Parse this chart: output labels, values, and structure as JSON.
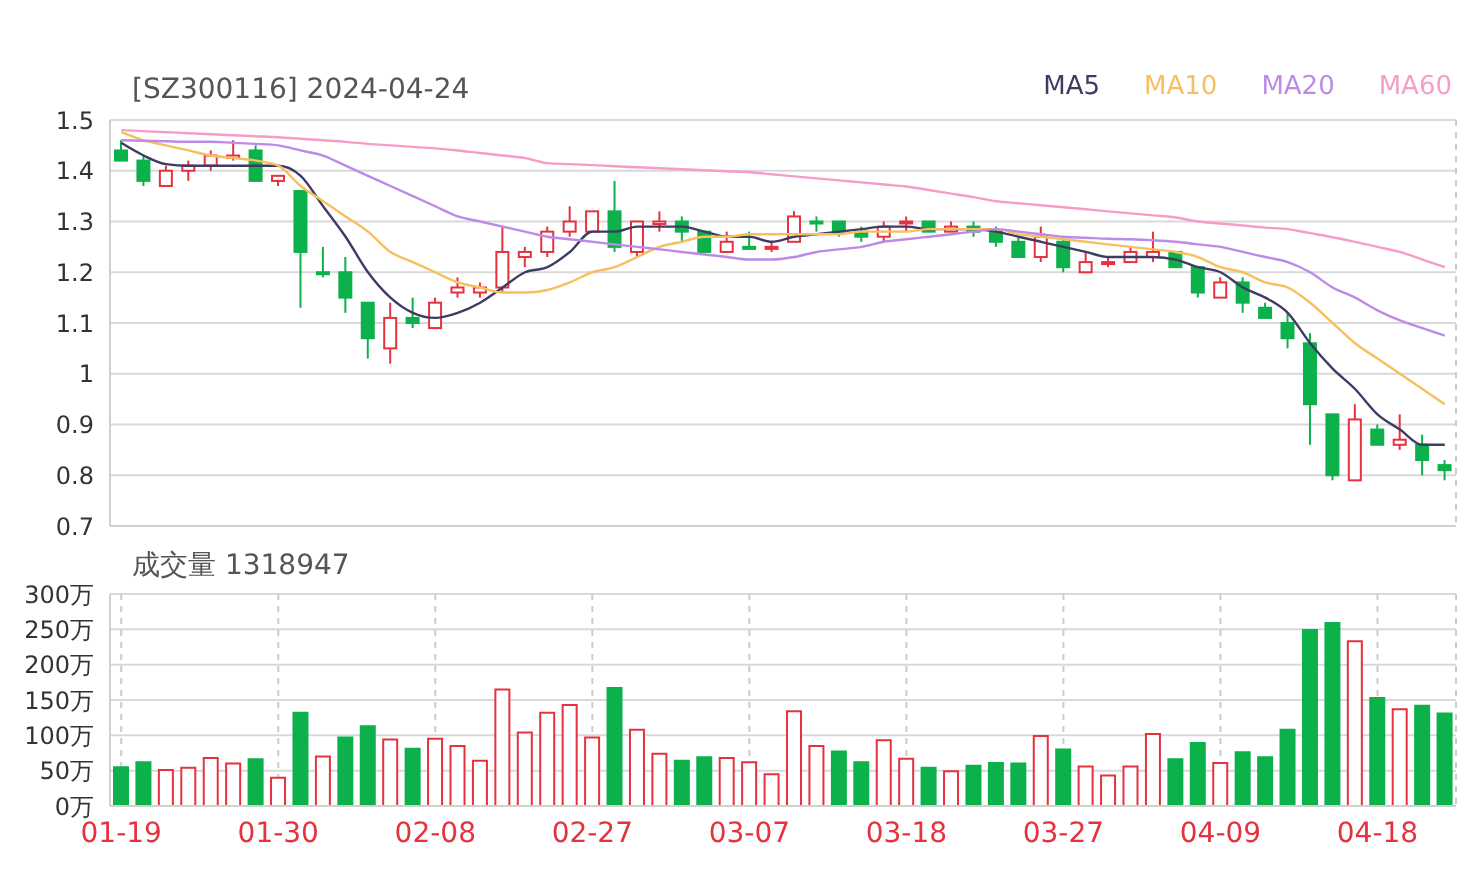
{
  "chart_data": [
    {
      "type": "candlestick",
      "title": "[SZ300116] 2024-04-24",
      "categories": [
        null,
        null,
        null,
        null,
        null,
        null,
        null,
        null,
        null,
        null,
        null,
        null,
        null,
        null,
        null,
        null,
        null,
        null,
        null,
        null,
        null,
        null,
        null,
        null,
        null,
        null,
        null,
        null,
        null,
        null,
        null,
        null,
        null,
        null,
        null,
        null,
        null,
        null,
        null,
        null,
        null,
        null,
        null,
        null,
        null,
        null,
        null,
        null,
        null,
        null,
        null,
        null,
        null,
        null,
        null,
        null,
        null,
        null,
        null,
        null
      ],
      "ohlc": [
        [
          1.44,
          1.46,
          1.42,
          1.42
        ],
        [
          1.42,
          1.43,
          1.37,
          1.38
        ],
        [
          1.37,
          1.41,
          1.37,
          1.4
        ],
        [
          1.4,
          1.42,
          1.38,
          1.41
        ],
        [
          1.41,
          1.44,
          1.4,
          1.43
        ],
        [
          1.425,
          1.46,
          1.42,
          1.43
        ],
        [
          1.44,
          1.45,
          1.38,
          1.38
        ],
        [
          1.38,
          1.39,
          1.37,
          1.39
        ],
        [
          1.36,
          1.36,
          1.13,
          1.24
        ],
        [
          1.2,
          1.25,
          1.19,
          1.2
        ],
        [
          1.2,
          1.23,
          1.12,
          1.15
        ],
        [
          1.14,
          1.14,
          1.03,
          1.07
        ],
        [
          1.05,
          1.14,
          1.02,
          1.11
        ],
        [
          1.11,
          1.15,
          1.09,
          1.1
        ],
        [
          1.09,
          1.15,
          1.09,
          1.14
        ],
        [
          1.16,
          1.19,
          1.15,
          1.17
        ],
        [
          1.16,
          1.18,
          1.15,
          1.17
        ],
        [
          1.17,
          1.29,
          1.16,
          1.24
        ],
        [
          1.23,
          1.25,
          1.21,
          1.24
        ],
        [
          1.24,
          1.29,
          1.23,
          1.28
        ],
        [
          1.28,
          1.33,
          1.27,
          1.3
        ],
        [
          1.28,
          1.32,
          1.28,
          1.32
        ],
        [
          1.32,
          1.38,
          1.24,
          1.25
        ],
        [
          1.24,
          1.3,
          1.23,
          1.3
        ],
        [
          1.295,
          1.32,
          1.28,
          1.3
        ],
        [
          1.3,
          1.31,
          1.26,
          1.28
        ],
        [
          1.28,
          1.28,
          1.24,
          1.24
        ],
        [
          1.24,
          1.28,
          1.24,
          1.26
        ],
        [
          1.25,
          1.28,
          1.25,
          1.25
        ],
        [
          1.25,
          1.26,
          1.24,
          1.25
        ],
        [
          1.26,
          1.32,
          1.26,
          1.31
        ],
        [
          1.3,
          1.31,
          1.28,
          1.3
        ],
        [
          1.3,
          1.3,
          1.27,
          1.28
        ],
        [
          1.28,
          1.29,
          1.26,
          1.27
        ],
        [
          1.27,
          1.3,
          1.26,
          1.29
        ],
        [
          1.3,
          1.31,
          1.28,
          1.3
        ],
        [
          1.3,
          1.3,
          1.28,
          1.28
        ],
        [
          1.28,
          1.3,
          1.28,
          1.29
        ],
        [
          1.29,
          1.3,
          1.27,
          1.28
        ],
        [
          1.28,
          1.29,
          1.25,
          1.26
        ],
        [
          1.26,
          1.27,
          1.23,
          1.23
        ],
        [
          1.23,
          1.29,
          1.22,
          1.27
        ],
        [
          1.26,
          1.27,
          1.2,
          1.21
        ],
        [
          1.2,
          1.24,
          1.2,
          1.22
        ],
        [
          1.22,
          1.23,
          1.21,
          1.22
        ],
        [
          1.22,
          1.25,
          1.22,
          1.24
        ],
        [
          1.23,
          1.28,
          1.22,
          1.24
        ],
        [
          1.24,
          1.24,
          1.21,
          1.21
        ],
        [
          1.21,
          1.21,
          1.15,
          1.16
        ],
        [
          1.15,
          1.19,
          1.15,
          1.18
        ],
        [
          1.18,
          1.19,
          1.12,
          1.14
        ],
        [
          1.13,
          1.14,
          1.11,
          1.11
        ],
        [
          1.1,
          1.12,
          1.05,
          1.07
        ],
        [
          1.06,
          1.08,
          0.86,
          0.94
        ],
        [
          0.92,
          0.92,
          0.79,
          0.8
        ],
        [
          0.79,
          0.94,
          0.79,
          0.91
        ],
        [
          0.89,
          0.9,
          0.86,
          0.86
        ],
        [
          0.86,
          0.92,
          0.85,
          0.87
        ],
        [
          0.86,
          0.88,
          0.8,
          0.83
        ],
        [
          0.82,
          0.83,
          0.79,
          0.81
        ]
      ],
      "colors": [
        "#0cb14b",
        "#0cb14b",
        "#e5323e",
        "#e5323e",
        "#e5323e",
        "#e5323e",
        "#0cb14b",
        "#e5323e",
        "#0cb14b",
        "#0cb14b",
        "#0cb14b",
        "#0cb14b",
        "#e5323e",
        "#0cb14b",
        "#e5323e",
        "#e5323e",
        "#e5323e",
        "#e5323e",
        "#e5323e",
        "#e5323e",
        "#e5323e",
        "#e5323e",
        "#0cb14b",
        "#e5323e",
        "#e5323e",
        "#0cb14b",
        "#0cb14b",
        "#e5323e",
        "#0cb14b",
        "#e5323e",
        "#e5323e",
        "#0cb14b",
        "#0cb14b",
        "#0cb14b",
        "#e5323e",
        "#e5323e",
        "#0cb14b",
        "#e5323e",
        "#0cb14b",
        "#0cb14b",
        "#0cb14b",
        "#e5323e",
        "#0cb14b",
        "#e5323e",
        "#e5323e",
        "#e5323e",
        "#e5323e",
        "#0cb14b",
        "#0cb14b",
        "#e5323e",
        "#0cb14b",
        "#0cb14b",
        "#0cb14b",
        "#0cb14b",
        "#0cb14b",
        "#e5323e",
        "#0cb14b",
        "#e5323e",
        "#0cb14b",
        "#0cb14b"
      ],
      "series": [
        {
          "type": "line",
          "name": "MA5",
          "color": "#3f3b63",
          "values": [
            1.455,
            1.43,
            1.413,
            1.41,
            1.41,
            1.41,
            1.41,
            1.41,
            1.39,
            1.33,
            1.27,
            1.2,
            1.15,
            1.12,
            1.11,
            1.12,
            1.14,
            1.17,
            1.2,
            1.21,
            1.24,
            1.28,
            1.28,
            1.29,
            1.29,
            1.29,
            1.28,
            1.27,
            1.27,
            1.26,
            1.27,
            1.275,
            1.28,
            1.285,
            1.29,
            1.29,
            1.285,
            1.285,
            1.285,
            1.28,
            1.27,
            1.26,
            1.25,
            1.24,
            1.23,
            1.23,
            1.23,
            1.225,
            1.21,
            1.2,
            1.17,
            1.15,
            1.12,
            1.06,
            1.01,
            0.97,
            0.92,
            0.89,
            0.86,
            0.86
          ]
        },
        {
          "type": "line",
          "name": "MA10",
          "color": "#f7bf5e",
          "values": [
            1.476,
            1.46,
            1.45,
            1.44,
            1.43,
            1.425,
            1.42,
            1.41,
            1.37,
            1.34,
            1.31,
            1.28,
            1.24,
            1.22,
            1.2,
            1.18,
            1.17,
            1.16,
            1.16,
            1.165,
            1.18,
            1.2,
            1.21,
            1.23,
            1.25,
            1.26,
            1.27,
            1.27,
            1.275,
            1.275,
            1.275,
            1.275,
            1.275,
            1.28,
            1.28,
            1.28,
            1.285,
            1.285,
            1.285,
            1.285,
            1.275,
            1.27,
            1.265,
            1.26,
            1.255,
            1.25,
            1.245,
            1.24,
            1.23,
            1.21,
            1.2,
            1.18,
            1.17,
            1.14,
            1.1,
            1.06,
            1.03,
            1.0,
            0.97,
            0.94
          ]
        },
        {
          "type": "line",
          "name": "MA20",
          "color": "#bd8ae8",
          "values": [
            1.46,
            1.459,
            1.458,
            1.457,
            1.457,
            1.455,
            1.453,
            1.45,
            1.44,
            1.43,
            1.41,
            1.39,
            1.37,
            1.35,
            1.33,
            1.31,
            1.3,
            1.29,
            1.28,
            1.27,
            1.265,
            1.26,
            1.255,
            1.25,
            1.245,
            1.24,
            1.235,
            1.23,
            1.225,
            1.225,
            1.23,
            1.24,
            1.245,
            1.25,
            1.26,
            1.265,
            1.27,
            1.275,
            1.28,
            1.285,
            1.28,
            1.275,
            1.27,
            1.268,
            1.266,
            1.265,
            1.263,
            1.26,
            1.255,
            1.25,
            1.24,
            1.23,
            1.22,
            1.2,
            1.17,
            1.15,
            1.125,
            1.105,
            1.09,
            1.075
          ]
        },
        {
          "type": "line",
          "name": "MA60",
          "color": "#f79cc9",
          "values": [
            1.48,
            1.478,
            1.476,
            1.474,
            1.472,
            1.47,
            1.468,
            1.466,
            1.463,
            1.46,
            1.457,
            1.453,
            1.45,
            1.447,
            1.444,
            1.44,
            1.435,
            1.43,
            1.425,
            1.415,
            1.413,
            1.411,
            1.409,
            1.407,
            1.405,
            1.403,
            1.401,
            1.399,
            1.397,
            1.393,
            1.389,
            1.385,
            1.381,
            1.377,
            1.373,
            1.369,
            1.362,
            1.355,
            1.348,
            1.34,
            1.336,
            1.332,
            1.328,
            1.324,
            1.32,
            1.316,
            1.312,
            1.308,
            1.3,
            1.296,
            1.292,
            1.288,
            1.285,
            1.277,
            1.269,
            1.26,
            1.25,
            1.24,
            1.225,
            1.21
          ]
        }
      ],
      "ylim": [
        0.7,
        1.5
      ],
      "yticks": [
        0.7,
        0.8,
        0.9,
        1,
        1.1,
        1.2,
        1.3,
        1.4,
        1.5
      ],
      "grid": true,
      "legend": "top right",
      "tick_labels": "y"
    },
    {
      "type": "bar",
      "title": "成交量 1318947",
      "categories": [
        "01-19",
        null,
        null,
        null,
        null,
        null,
        null,
        "01-30",
        null,
        null,
        null,
        null,
        null,
        null,
        "02-08",
        null,
        null,
        null,
        null,
        null,
        null,
        "02-27",
        null,
        null,
        null,
        null,
        null,
        null,
        "03-07",
        null,
        null,
        null,
        null,
        null,
        null,
        "03-18",
        null,
        null,
        null,
        null,
        null,
        null,
        "03-27",
        null,
        null,
        null,
        null,
        null,
        null,
        "04-09",
        null,
        null,
        null,
        null,
        null,
        null,
        "04-18",
        null,
        null,
        null
      ],
      "values": [
        55,
        62,
        51,
        54,
        68,
        60,
        66,
        40,
        132,
        70,
        97,
        113,
        94,
        81,
        95,
        85,
        64,
        165,
        104,
        132,
        143,
        97,
        167,
        108,
        74,
        64,
        69,
        68,
        62,
        45,
        134,
        85,
        77,
        62,
        93,
        67,
        54,
        49,
        57,
        61,
        60,
        99,
        80,
        56,
        43,
        56,
        102,
        66,
        89,
        61,
        76,
        69,
        108,
        249,
        259,
        233,
        153,
        137,
        142,
        131
      ],
      "colors": [
        "#0cb14b",
        "#0cb14b",
        "#e5323e",
        "#e5323e",
        "#e5323e",
        "#e5323e",
        "#0cb14b",
        "#e5323e",
        "#0cb14b",
        "#e5323e",
        "#0cb14b",
        "#0cb14b",
        "#e5323e",
        "#0cb14b",
        "#e5323e",
        "#e5323e",
        "#e5323e",
        "#e5323e",
        "#e5323e",
        "#e5323e",
        "#e5323e",
        "#e5323e",
        "#0cb14b",
        "#e5323e",
        "#e5323e",
        "#0cb14b",
        "#0cb14b",
        "#e5323e",
        "#e5323e",
        "#e5323e",
        "#e5323e",
        "#e5323e",
        "#0cb14b",
        "#0cb14b",
        "#e5323e",
        "#e5323e",
        "#0cb14b",
        "#e5323e",
        "#0cb14b",
        "#0cb14b",
        "#0cb14b",
        "#e5323e",
        "#0cb14b",
        "#e5323e",
        "#e5323e",
        "#e5323e",
        "#e5323e",
        "#0cb14b",
        "#0cb14b",
        "#e5323e",
        "#0cb14b",
        "#0cb14b",
        "#0cb14b",
        "#0cb14b",
        "#0cb14b",
        "#e5323e",
        "#0cb14b",
        "#e5323e",
        "#0cb14b",
        "#0cb14b"
      ],
      "ylim": [
        0,
        300
      ],
      "yticks": [
        {
          "value": 0,
          "label": "0万"
        },
        {
          "value": 50,
          "label": "50万"
        },
        {
          "value": 100,
          "label": "100万"
        },
        {
          "value": 150,
          "label": "150万"
        },
        {
          "value": 200,
          "label": "200万"
        },
        {
          "value": 250,
          "label": "250万"
        },
        {
          "value": 300,
          "label": "300万"
        }
      ],
      "grid": true
    }
  ]
}
